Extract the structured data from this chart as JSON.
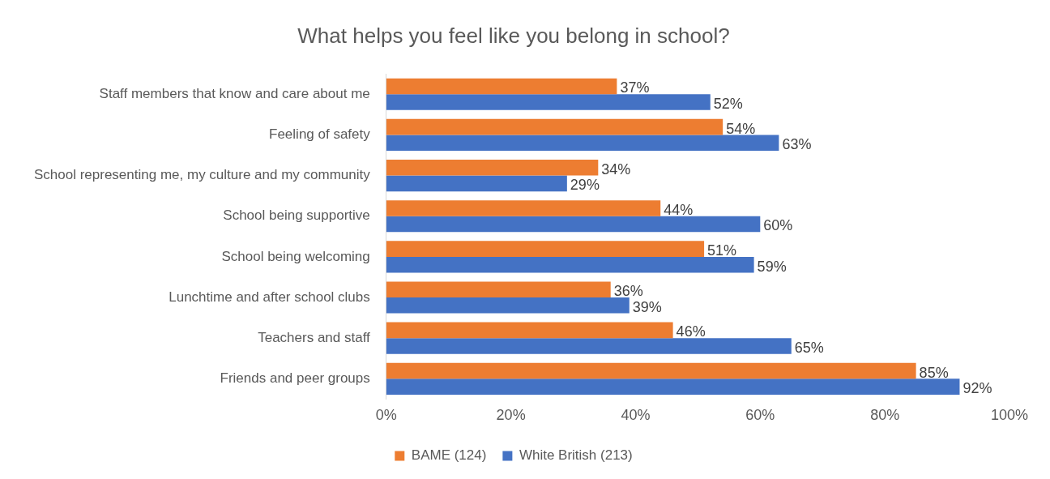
{
  "chart_data": {
    "type": "bar",
    "orientation": "horizontal",
    "title": "What helps you feel like you belong in school?",
    "categories": [
      "Staff members that know and care about me",
      "Feeling of safety",
      "School representing me, my culture and my community",
      "School being supportive",
      "School being welcoming",
      "Lunchtime and after school clubs",
      "Teachers and staff",
      "Friends and peer groups"
    ],
    "series": [
      {
        "name": "BAME (124)",
        "color": "#ed7d31",
        "values": [
          37,
          54,
          34,
          44,
          51,
          36,
          46,
          85
        ],
        "value_labels": [
          "37%",
          "54%",
          "34%",
          "44%",
          "51%",
          "36%",
          "46%",
          "85%"
        ]
      },
      {
        "name": "White British (213)",
        "color": "#4472c4",
        "values": [
          52,
          63,
          29,
          60,
          59,
          39,
          65,
          92
        ],
        "value_labels": [
          "52%",
          "63%",
          "29%",
          "60%",
          "59%",
          "39%",
          "65%",
          "92%"
        ]
      }
    ],
    "xlim": [
      0,
      100
    ],
    "xticks": [
      {
        "value": 0,
        "label": "0%"
      },
      {
        "value": 20,
        "label": "20%"
      },
      {
        "value": 40,
        "label": "40%"
      },
      {
        "value": 60,
        "label": "60%"
      },
      {
        "value": 80,
        "label": "80%"
      },
      {
        "value": 100,
        "label": "100%"
      }
    ],
    "grid": false,
    "legend": "bottom"
  }
}
